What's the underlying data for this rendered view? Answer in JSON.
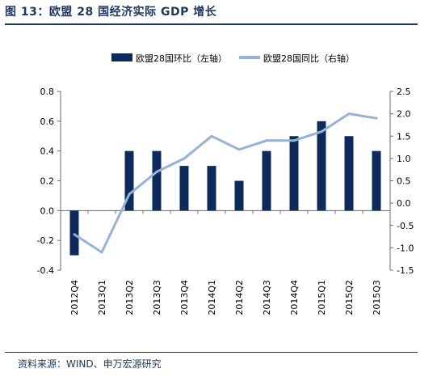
{
  "header": {
    "title": "图 13：欧盟 28 国经济实际 GDP 增长"
  },
  "footer": {
    "source": "资料来源：WIND、申万宏源研究"
  },
  "colors": {
    "title": "#1f3864",
    "bar": "#0d2a5c",
    "line": "#95b3d7",
    "axis": "#6a6a6a"
  },
  "chart_data": {
    "type": "bar",
    "categories": [
      "2012Q4",
      "2013Q1",
      "2013Q2",
      "2013Q3",
      "2013Q4",
      "2014Q1",
      "2014Q2",
      "2014Q3",
      "2014Q4",
      "2015Q1",
      "2015Q2",
      "2015Q3"
    ],
    "legend_position": "top",
    "series": [
      {
        "name": "欧盟28国环比（左轴）",
        "type": "bar",
        "axis": "left",
        "values": [
          -0.3,
          0.0,
          0.4,
          0.4,
          0.3,
          0.3,
          0.2,
          0.4,
          0.5,
          0.6,
          0.5,
          0.4
        ]
      },
      {
        "name": "欧盟28国同比（右轴）",
        "type": "line",
        "axis": "right",
        "values": [
          -0.7,
          -1.1,
          0.2,
          0.7,
          1.0,
          1.5,
          1.2,
          1.4,
          1.4,
          1.6,
          2.0,
          1.9
        ]
      }
    ],
    "y_left": {
      "min": -0.4,
      "max": 0.8,
      "ticks": [
        "-0.4",
        "-0.2",
        "0.0",
        "0.2",
        "0.4",
        "0.6",
        "0.8"
      ]
    },
    "y_right": {
      "min": -1.5,
      "max": 2.5,
      "ticks": [
        "-1.5",
        "-1.0",
        "-0.5",
        "0.0",
        "0.5",
        "1.0",
        "1.5",
        "2.0",
        "2.5"
      ]
    },
    "grid": false
  }
}
